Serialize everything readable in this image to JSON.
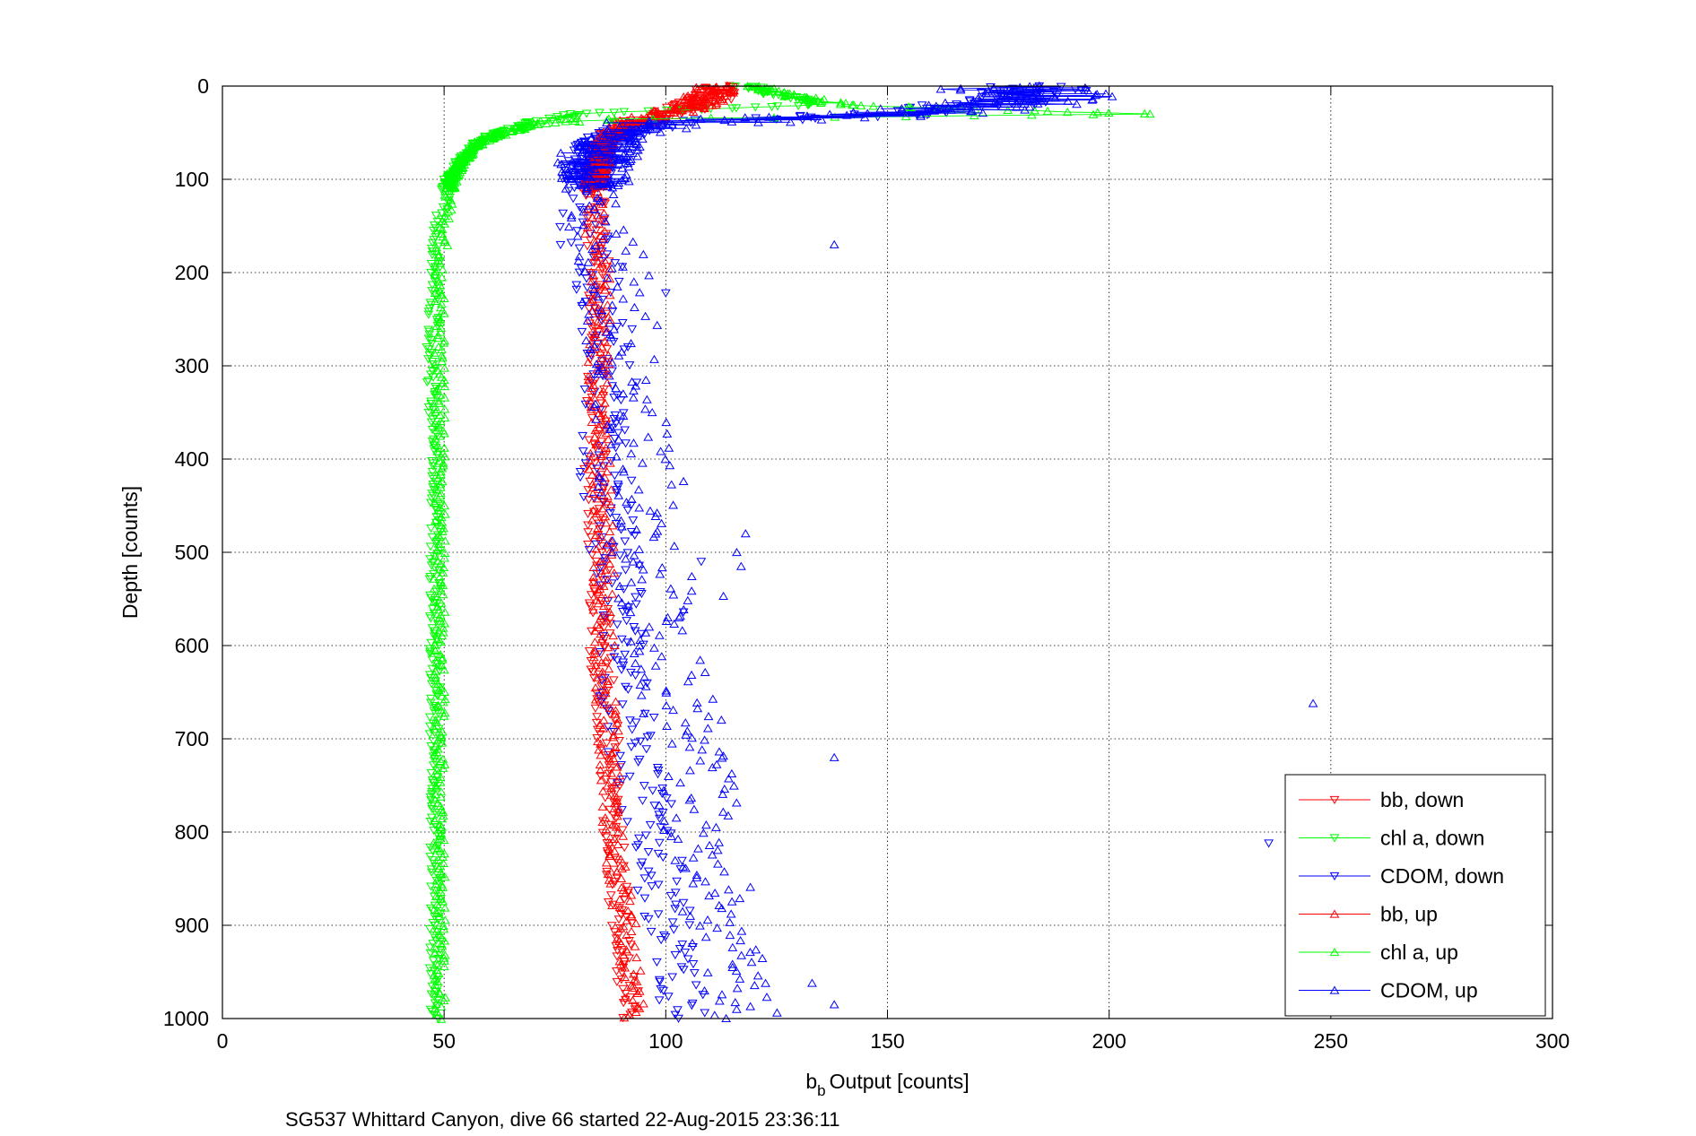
{
  "chart_data": {
    "type": "scatter",
    "title": "",
    "xlabel": "Output [counts]",
    "xlabel_main": "b",
    "xlabel_sub": "b",
    "ylabel": "Depth [counts]",
    "footer": "SG537 Whittard Canyon, dive 66 started 22-Aug-2015 23:36:11",
    "xlim": [
      0,
      300
    ],
    "ylim": [
      0,
      1000
    ],
    "y_reversed": true,
    "grid": true,
    "x_ticks": [
      0,
      50,
      100,
      150,
      200,
      250,
      300
    ],
    "y_ticks": [
      0,
      100,
      200,
      300,
      400,
      500,
      600,
      700,
      800,
      900,
      1000
    ],
    "legend_position": "bottom-right",
    "series": [
      {
        "name": "bb, down",
        "color": "#ff0000",
        "marker": "triangle-down",
        "profile": [
          [
            0,
            112
          ],
          [
            10,
            111
          ],
          [
            20,
            107
          ],
          [
            30,
            100
          ],
          [
            40,
            92
          ],
          [
            50,
            88
          ],
          [
            60,
            86
          ],
          [
            80,
            85
          ],
          [
            100,
            84
          ],
          [
            150,
            84
          ],
          [
            200,
            85
          ],
          [
            300,
            85
          ],
          [
            400,
            84
          ],
          [
            500,
            85
          ],
          [
            600,
            85
          ],
          [
            700,
            87
          ],
          [
            800,
            88
          ],
          [
            900,
            90
          ],
          [
            1000,
            92
          ]
        ],
        "spread": 2.5
      },
      {
        "name": "chl a, down",
        "color": "#00ff00",
        "marker": "triangle-down",
        "profile": [
          [
            0,
            118
          ],
          [
            10,
            126
          ],
          [
            20,
            135
          ],
          [
            30,
            80
          ],
          [
            40,
            70
          ],
          [
            50,
            62
          ],
          [
            60,
            58
          ],
          [
            80,
            54
          ],
          [
            100,
            51
          ],
          [
            150,
            49
          ],
          [
            200,
            48
          ],
          [
            300,
            47
          ],
          [
            400,
            48
          ],
          [
            500,
            48
          ],
          [
            600,
            48
          ],
          [
            700,
            48
          ],
          [
            800,
            48
          ],
          [
            900,
            48
          ],
          [
            1000,
            48
          ]
        ],
        "spread": 1.3
      },
      {
        "name": "CDOM, down",
        "color": "#0000ff",
        "marker": "triangle-down",
        "profile": [
          [
            0,
            185
          ],
          [
            10,
            180
          ],
          [
            20,
            170
          ],
          [
            30,
            150
          ],
          [
            40,
            100
          ],
          [
            50,
            90
          ],
          [
            60,
            86
          ],
          [
            80,
            83
          ],
          [
            100,
            82
          ],
          [
            150,
            80
          ],
          [
            200,
            85
          ],
          [
            300,
            88
          ],
          [
            400,
            86
          ],
          [
            500,
            88
          ],
          [
            600,
            90
          ],
          [
            700,
            92
          ],
          [
            800,
            97
          ],
          [
            900,
            100
          ],
          [
            1000,
            104
          ]
        ],
        "spread": 6
      },
      {
        "name": "bb, up",
        "color": "#ff0000",
        "marker": "triangle-up",
        "profile": [
          [
            0,
            110
          ],
          [
            10,
            110
          ],
          [
            20,
            106
          ],
          [
            30,
            100
          ],
          [
            40,
            92
          ],
          [
            50,
            88
          ],
          [
            60,
            86
          ],
          [
            80,
            85
          ],
          [
            100,
            84
          ],
          [
            150,
            84
          ],
          [
            200,
            85
          ],
          [
            300,
            85
          ],
          [
            400,
            85
          ],
          [
            500,
            86
          ],
          [
            600,
            86
          ],
          [
            700,
            87
          ],
          [
            800,
            88
          ],
          [
            900,
            91
          ],
          [
            1000,
            93
          ]
        ],
        "spread": 2.5
      },
      {
        "name": "chl a, up",
        "color": "#00ff00",
        "marker": "triangle-up",
        "profile": [
          [
            0,
            120
          ],
          [
            10,
            128
          ],
          [
            20,
            140
          ],
          [
            25,
            170
          ],
          [
            30,
            211
          ],
          [
            35,
            90
          ],
          [
            40,
            72
          ],
          [
            50,
            64
          ],
          [
            60,
            58
          ],
          [
            80,
            54
          ],
          [
            100,
            52
          ],
          [
            150,
            50
          ],
          [
            200,
            49
          ],
          [
            300,
            49
          ],
          [
            400,
            49
          ],
          [
            500,
            49
          ],
          [
            600,
            49
          ],
          [
            700,
            49
          ],
          [
            800,
            49
          ],
          [
            900,
            49
          ],
          [
            1000,
            49
          ]
        ],
        "spread": 1.3
      },
      {
        "name": "CDOM, up",
        "color": "#0000ff",
        "marker": "triangle-up",
        "profile": [
          [
            0,
            180
          ],
          [
            10,
            182
          ],
          [
            20,
            175
          ],
          [
            30,
            150
          ],
          [
            40,
            102
          ],
          [
            50,
            92
          ],
          [
            60,
            87
          ],
          [
            80,
            84
          ],
          [
            100,
            83
          ],
          [
            150,
            84
          ],
          [
            200,
            88
          ],
          [
            300,
            90
          ],
          [
            400,
            92
          ],
          [
            500,
            96
          ],
          [
            600,
            100
          ],
          [
            700,
            105
          ],
          [
            800,
            108
          ],
          [
            900,
            112
          ],
          [
            1000,
            118
          ]
        ],
        "spread": 9
      },
      {
        "name": "",
        "color": "#0000ff",
        "marker": "outliers",
        "points_up": [
          [
            138,
            170
          ],
          [
            118,
            480
          ],
          [
            116,
            500
          ],
          [
            117,
            515
          ],
          [
            113,
            547
          ],
          [
            104,
            424
          ],
          [
            103,
            570
          ],
          [
            138,
            720
          ],
          [
            246,
            662
          ],
          [
            138,
            985
          ],
          [
            133,
            962
          ]
        ],
        "points_down": [
          [
            100,
            222
          ],
          [
            108,
            510
          ],
          [
            236,
            812
          ],
          [
            104,
            564
          ]
        ]
      }
    ]
  }
}
